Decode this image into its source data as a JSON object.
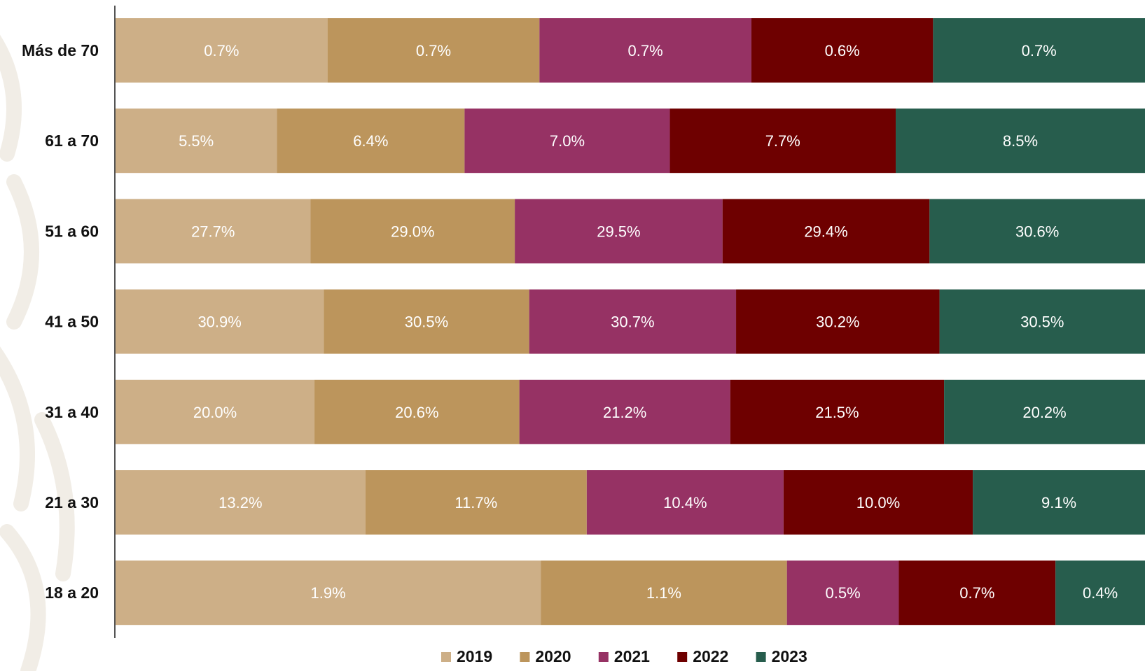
{
  "chart_data": {
    "type": "bar",
    "orientation": "horizontal",
    "stacked": true,
    "normalized": true,
    "title": "",
    "xlabel": "",
    "ylabel": "",
    "categories": [
      "Más de 70",
      "61 a 70",
      "51 a 60",
      "41 a 50",
      "31 a 40",
      "21 a 30",
      "18 a 20"
    ],
    "series": [
      {
        "name": "2019",
        "color": "#cdaf87",
        "values": [
          0.7,
          5.5,
          27.7,
          30.9,
          20.0,
          13.2,
          1.9
        ],
        "labels": [
          "0.7%",
          "5.5%",
          "27.7%",
          "30.9%",
          "20.0%",
          "13.2%",
          "1.9%"
        ]
      },
      {
        "name": "2020",
        "color": "#bc955c",
        "values": [
          0.7,
          6.4,
          29.0,
          30.5,
          20.6,
          11.7,
          1.1
        ],
        "labels": [
          "0.7%",
          "6.4%",
          "29.0%",
          "30.5%",
          "20.6%",
          "11.7%",
          "1.1%"
        ]
      },
      {
        "name": "2021",
        "color": "#963264",
        "values": [
          0.7,
          7.0,
          29.5,
          30.7,
          21.2,
          10.4,
          0.5
        ],
        "labels": [
          "0.7%",
          "7.0%",
          "29.5%",
          "30.7%",
          "21.2%",
          "10.4%",
          "0.5%"
        ]
      },
      {
        "name": "2022",
        "color": "#6e0000",
        "values": [
          0.6,
          7.7,
          29.4,
          30.2,
          21.5,
          10.0,
          0.7
        ],
        "labels": [
          "0.6%",
          "7.7%",
          "29.4%",
          "30.2%",
          "21.5%",
          "10.0%",
          "0.7%"
        ]
      },
      {
        "name": "2023",
        "color": "#275d4d",
        "values": [
          0.7,
          8.5,
          30.6,
          30.5,
          20.2,
          9.1,
          0.4
        ],
        "labels": [
          "0.7%",
          "8.5%",
          "30.6%",
          "30.5%",
          "20.2%",
          "9.1%",
          "0.4%"
        ]
      }
    ],
    "legend_position": "bottom-center",
    "grid": false
  }
}
